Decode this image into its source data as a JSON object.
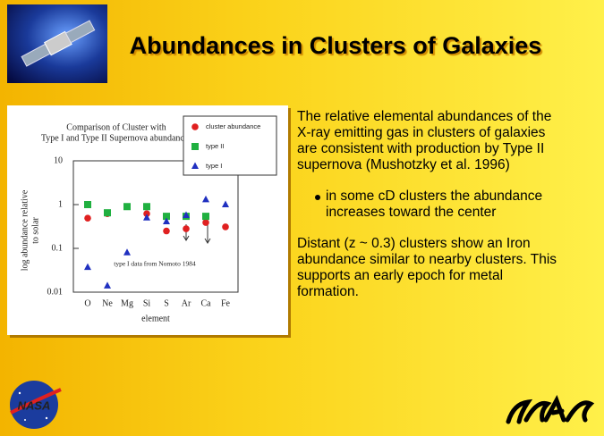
{
  "title": "Abundances in Clusters of Galaxies",
  "paragraphs": [
    "The relative elemental abundances of the X-ray emitting gas in clusters of galaxies are consistent with production by Type II supernova (Mushotzky et al. 1996)",
    "Distant (z ~ 0.3)  clusters show an Iron abundance  similar to nearby clusters. This supports an early epoch for metal formation."
  ],
  "bullet": "in some cD clusters the abundance increases toward the center",
  "logo_text": "NASA",
  "chart_data": {
    "type": "scatter",
    "title": [
      "Comparison of Cluster with",
      "Type I and Type II Supernova abundances"
    ],
    "x_label": "element",
    "y_label": [
      "log  abundance  relative",
      "to  solar"
    ],
    "annotation": "type I data from Nomoto 1984",
    "categories": [
      "O",
      "Ne",
      "Mg",
      "Si",
      "S",
      "Ar",
      "Ca",
      "Fe"
    ],
    "series": [
      {
        "name": "cluster abundance",
        "color": "#e02020",
        "marker": "circle",
        "values": [
          0.49,
          0.62,
          null,
          0.62,
          0.25,
          0.28,
          0.39,
          0.31
        ]
      },
      {
        "name": "type II",
        "color": "#20b040",
        "marker": "square",
        "values": [
          1.0,
          0.65,
          0.9,
          0.9,
          0.54,
          0.54,
          0.54,
          null
        ]
      },
      {
        "name": "type I",
        "color": "#2030c0",
        "marker": "triangle",
        "values": [
          0.037,
          0.014,
          0.08,
          0.5,
          0.41,
          0.57,
          1.3,
          1.0
        ]
      }
    ],
    "ylim": [
      0.01,
      10
    ],
    "yticks": [
      0.01,
      0.1,
      1,
      10
    ],
    "log_y": true
  }
}
